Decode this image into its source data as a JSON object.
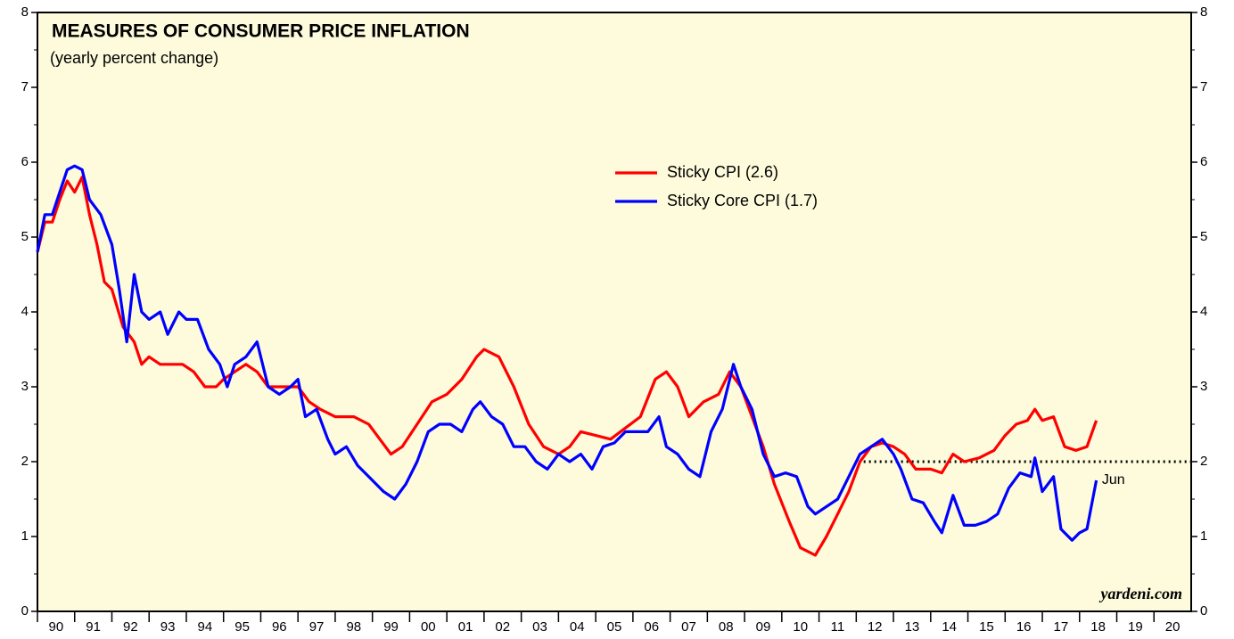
{
  "chart_data": {
    "type": "line",
    "title": "MEASURES OF CONSUMER PRICE INFLATION",
    "subtitle": "(yearly percent change)",
    "xlim": [
      1990,
      2021
    ],
    "xticks": [
      {
        "value": 1990,
        "label": "90"
      },
      {
        "value": 1991,
        "label": "91"
      },
      {
        "value": 1992,
        "label": "92"
      },
      {
        "value": 1993,
        "label": "93"
      },
      {
        "value": 1994,
        "label": "94"
      },
      {
        "value": 1995,
        "label": "95"
      },
      {
        "value": 1996,
        "label": "96"
      },
      {
        "value": 1997,
        "label": "97"
      },
      {
        "value": 1998,
        "label": "98"
      },
      {
        "value": 1999,
        "label": "99"
      },
      {
        "value": 2000,
        "label": "00"
      },
      {
        "value": 2001,
        "label": "01"
      },
      {
        "value": 2002,
        "label": "02"
      },
      {
        "value": 2003,
        "label": "03"
      },
      {
        "value": 2004,
        "label": "04"
      },
      {
        "value": 2005,
        "label": "05"
      },
      {
        "value": 2006,
        "label": "06"
      },
      {
        "value": 2007,
        "label": "07"
      },
      {
        "value": 2008,
        "label": "08"
      },
      {
        "value": 2009,
        "label": "09"
      },
      {
        "value": 2010,
        "label": "10"
      },
      {
        "value": 2011,
        "label": "11"
      },
      {
        "value": 2012,
        "label": "12"
      },
      {
        "value": 2013,
        "label": "13"
      },
      {
        "value": 2014,
        "label": "14"
      },
      {
        "value": 2015,
        "label": "15"
      },
      {
        "value": 2016,
        "label": "16"
      },
      {
        "value": 2017,
        "label": "17"
      },
      {
        "value": 2018,
        "label": "18"
      },
      {
        "value": 2019,
        "label": "19"
      },
      {
        "value": 2020,
        "label": "20"
      }
    ],
    "ylim": [
      0,
      8
    ],
    "yticks": [
      0,
      1,
      2,
      3,
      4,
      5,
      6,
      7,
      8
    ],
    "series": [
      {
        "name": "Sticky CPI (2.6)",
        "color": "#ff0000",
        "x": [
          1990.0,
          1990.2,
          1990.4,
          1990.6,
          1990.8,
          1991.0,
          1991.2,
          1991.4,
          1991.6,
          1991.8,
          1992.0,
          1992.3,
          1992.6,
          1992.8,
          1993.0,
          1993.3,
          1993.6,
          1993.9,
          1994.2,
          1994.5,
          1994.8,
          1995.0,
          1995.3,
          1995.6,
          1995.9,
          1996.2,
          1996.6,
          1997.0,
          1997.3,
          1997.6,
          1998.0,
          1998.5,
          1998.9,
          1999.2,
          1999.5,
          1999.8,
          2000.2,
          2000.6,
          2001.0,
          2001.4,
          2001.8,
          2002.0,
          2002.4,
          2002.8,
          2003.2,
          2003.6,
          2004.0,
          2004.3,
          2004.6,
          2005.0,
          2005.4,
          2005.8,
          2006.2,
          2006.6,
          2006.9,
          2007.2,
          2007.5,
          2007.9,
          2008.3,
          2008.6,
          2008.9,
          2009.2,
          2009.5,
          2009.8,
          2010.2,
          2010.5,
          2010.9,
          2011.2,
          2011.5,
          2011.8,
          2012.1,
          2012.4,
          2012.7,
          2013.0,
          2013.3,
          2013.6,
          2014.0,
          2014.3,
          2014.6,
          2014.9,
          2015.3,
          2015.7,
          2016.0,
          2016.3,
          2016.6,
          2016.8,
          2017.0,
          2017.3,
          2017.6,
          2017.9,
          2018.2,
          2018.45
        ],
        "values": [
          4.8,
          5.2,
          5.2,
          5.5,
          5.75,
          5.6,
          5.8,
          5.3,
          4.9,
          4.4,
          4.3,
          3.8,
          3.6,
          3.3,
          3.4,
          3.3,
          3.3,
          3.3,
          3.2,
          3.0,
          3.0,
          3.1,
          3.2,
          3.3,
          3.2,
          3.0,
          3.0,
          3.0,
          2.8,
          2.7,
          2.6,
          2.6,
          2.5,
          2.3,
          2.1,
          2.2,
          2.5,
          2.8,
          2.9,
          3.1,
          3.4,
          3.5,
          3.4,
          3.0,
          2.5,
          2.2,
          2.1,
          2.2,
          2.4,
          2.35,
          2.3,
          2.45,
          2.6,
          3.1,
          3.2,
          3.0,
          2.6,
          2.8,
          2.9,
          3.2,
          3.0,
          2.6,
          2.2,
          1.7,
          1.2,
          0.85,
          0.75,
          1.0,
          1.3,
          1.6,
          2.0,
          2.2,
          2.25,
          2.2,
          2.1,
          1.9,
          1.9,
          1.85,
          2.1,
          2.0,
          2.05,
          2.15,
          2.35,
          2.5,
          2.55,
          2.7,
          2.55,
          2.6,
          2.2,
          2.15,
          2.2,
          2.55
        ]
      },
      {
        "name": "Sticky Core CPI (1.7)",
        "color": "#0000ff",
        "x": [
          1990.0,
          1990.2,
          1990.4,
          1990.6,
          1990.8,
          1991.0,
          1991.2,
          1991.4,
          1991.7,
          1992.0,
          1992.2,
          1992.4,
          1992.6,
          1992.8,
          1993.0,
          1993.3,
          1993.5,
          1993.8,
          1994.0,
          1994.3,
          1994.6,
          1994.9,
          1995.1,
          1995.3,
          1995.6,
          1995.9,
          1996.2,
          1996.5,
          1996.8,
          1997.0,
          1997.2,
          1997.5,
          1997.8,
          1998.0,
          1998.3,
          1998.6,
          1998.9,
          1999.3,
          1999.6,
          1999.9,
          2000.2,
          2000.5,
          2000.8,
          2001.1,
          2001.4,
          2001.7,
          2001.9,
          2002.2,
          2002.5,
          2002.8,
          2003.1,
          2003.4,
          2003.7,
          2004.0,
          2004.3,
          2004.6,
          2004.9,
          2005.2,
          2005.5,
          2005.8,
          2006.1,
          2006.4,
          2006.7,
          2006.9,
          2007.2,
          2007.5,
          2007.8,
          2008.1,
          2008.4,
          2008.7,
          2008.9,
          2009.2,
          2009.5,
          2009.8,
          2010.1,
          2010.4,
          2010.7,
          2010.9,
          2011.2,
          2011.5,
          2011.8,
          2012.1,
          2012.4,
          2012.7,
          2013.0,
          2013.2,
          2013.5,
          2013.8,
          2014.1,
          2014.3,
          2014.6,
          2014.9,
          2015.2,
          2015.5,
          2015.8,
          2016.1,
          2016.4,
          2016.7,
          2016.8,
          2017.0,
          2017.3,
          2017.5,
          2017.8,
          2018.0,
          2018.2,
          2018.45
        ],
        "values": [
          4.8,
          5.3,
          5.3,
          5.6,
          5.9,
          5.95,
          5.9,
          5.5,
          5.3,
          4.9,
          4.3,
          3.6,
          4.5,
          4.0,
          3.9,
          4.0,
          3.7,
          4.0,
          3.9,
          3.9,
          3.5,
          3.3,
          3.0,
          3.3,
          3.4,
          3.6,
          3.0,
          2.9,
          3.0,
          3.1,
          2.6,
          2.7,
          2.3,
          2.1,
          2.2,
          1.95,
          1.8,
          1.6,
          1.5,
          1.7,
          2.0,
          2.4,
          2.5,
          2.5,
          2.4,
          2.7,
          2.8,
          2.6,
          2.5,
          2.2,
          2.2,
          2.0,
          1.9,
          2.1,
          2.0,
          2.1,
          1.9,
          2.2,
          2.25,
          2.4,
          2.4,
          2.4,
          2.6,
          2.2,
          2.1,
          1.9,
          1.8,
          2.4,
          2.7,
          3.3,
          3.0,
          2.7,
          2.1,
          1.8,
          1.85,
          1.8,
          1.4,
          1.3,
          1.4,
          1.5,
          1.8,
          2.1,
          2.2,
          2.3,
          2.1,
          1.9,
          1.5,
          1.45,
          1.2,
          1.05,
          1.55,
          1.15,
          1.15,
          1.2,
          1.3,
          1.65,
          1.85,
          1.8,
          2.05,
          1.6,
          1.8,
          1.1,
          0.95,
          1.05,
          1.1,
          1.75
        ]
      }
    ],
    "reference_line": {
      "y": 2,
      "from": 2012.2
    },
    "annotations": [
      {
        "text": "Jun",
        "x": 2018.6,
        "y": 1.75,
        "color": "#0000ff"
      }
    ],
    "source": "yardeni.com"
  }
}
